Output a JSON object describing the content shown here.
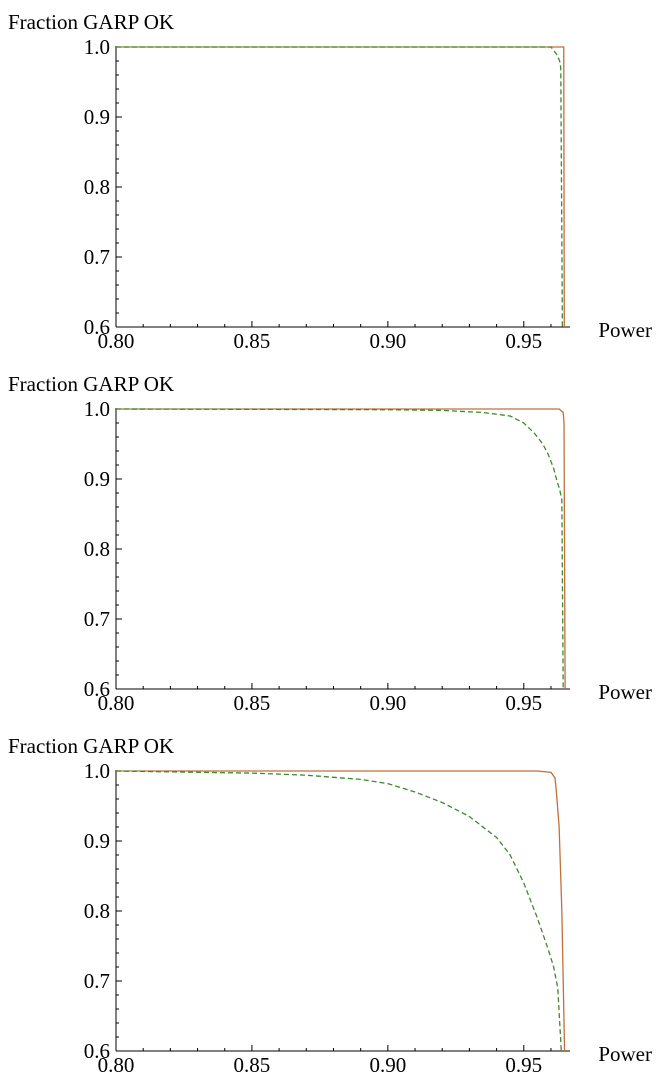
{
  "chart_data": [
    {
      "type": "line",
      "ylabel": "Fraction GARP OK",
      "xlabel": "Power",
      "xlim": [
        0.8,
        0.967
      ],
      "ylim": [
        0.6,
        1.0
      ],
      "x_ticks": [
        "0.80",
        "0.85",
        "0.90",
        "0.95"
      ],
      "y_ticks": [
        "0.6",
        "0.7",
        "0.8",
        "0.9",
        "1.0"
      ],
      "grid": false,
      "legend": "none",
      "series": [
        {
          "style": "solid",
          "color": "#c0703a",
          "points": [
            [
              0.8,
              1.0
            ],
            [
              0.9647,
              1.0
            ],
            [
              0.9649,
              0.6
            ]
          ]
        },
        {
          "style": "dashed",
          "color": "#3c8a2a",
          "points": [
            [
              0.8,
              1.0
            ],
            [
              0.96,
              1.0
            ],
            [
              0.961,
              0.995
            ],
            [
              0.962,
              0.99
            ],
            [
              0.9632,
              0.98
            ],
            [
              0.9636,
              0.97
            ],
            [
              0.9642,
              0.6
            ]
          ]
        }
      ]
    },
    {
      "type": "line",
      "ylabel": "Fraction GARP OK",
      "xlabel": "Power",
      "xlim": [
        0.8,
        0.967
      ],
      "ylim": [
        0.6,
        1.0
      ],
      "x_ticks": [
        "0.80",
        "0.85",
        "0.90",
        "0.95"
      ],
      "y_ticks": [
        "0.6",
        "0.7",
        "0.8",
        "0.9",
        "1.0"
      ],
      "grid": false,
      "legend": "none",
      "series": [
        {
          "style": "solid",
          "color": "#c0703a",
          "points": [
            [
              0.8,
              1.0
            ],
            [
              0.963,
              1.0
            ],
            [
              0.9645,
              0.995
            ],
            [
              0.9648,
              0.98
            ],
            [
              0.9652,
              0.6
            ]
          ]
        },
        {
          "style": "dashed",
          "color": "#3c8a2a",
          "points": [
            [
              0.8,
              1.0
            ],
            [
              0.9,
              0.999
            ],
            [
              0.92,
              0.998
            ],
            [
              0.935,
              0.995
            ],
            [
              0.945,
              0.99
            ],
            [
              0.95,
              0.98
            ],
            [
              0.954,
              0.965
            ],
            [
              0.957,
              0.95
            ],
            [
              0.959,
              0.935
            ],
            [
              0.961,
              0.915
            ],
            [
              0.962,
              0.9
            ],
            [
              0.9632,
              0.885
            ],
            [
              0.964,
              0.87
            ],
            [
              0.9645,
              0.6
            ]
          ]
        }
      ]
    },
    {
      "type": "line",
      "ylabel": "Fraction GARP OK",
      "xlabel": "Power",
      "xlim": [
        0.8,
        0.967
      ],
      "ylim": [
        0.6,
        1.0
      ],
      "x_ticks": [
        "0.80",
        "0.85",
        "0.90",
        "0.95"
      ],
      "y_ticks": [
        "0.6",
        "0.7",
        "0.8",
        "0.9",
        "1.0"
      ],
      "grid": false,
      "legend": "none",
      "series": [
        {
          "style": "solid",
          "color": "#c0703a",
          "points": [
            [
              0.8,
              1.0
            ],
            [
              0.955,
              1.0
            ],
            [
              0.96,
              0.998
            ],
            [
              0.9615,
              0.99
            ],
            [
              0.962,
              0.97
            ],
            [
              0.963,
              0.92
            ],
            [
              0.964,
              0.8
            ],
            [
              0.9645,
              0.7
            ],
            [
              0.965,
              0.6
            ]
          ]
        },
        {
          "style": "dashed",
          "color": "#3c8a2a",
          "points": [
            [
              0.8,
              1.0
            ],
            [
              0.85,
              0.997
            ],
            [
              0.87,
              0.994
            ],
            [
              0.89,
              0.988
            ],
            [
              0.9,
              0.982
            ],
            [
              0.91,
              0.97
            ],
            [
              0.92,
              0.955
            ],
            [
              0.93,
              0.935
            ],
            [
              0.94,
              0.905
            ],
            [
              0.945,
              0.88
            ],
            [
              0.95,
              0.84
            ],
            [
              0.955,
              0.79
            ],
            [
              0.959,
              0.745
            ],
            [
              0.961,
              0.72
            ],
            [
              0.9625,
              0.69
            ],
            [
              0.9638,
              0.6
            ]
          ]
        }
      ]
    }
  ]
}
